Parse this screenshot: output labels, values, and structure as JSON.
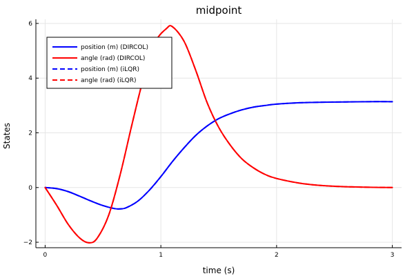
{
  "chart_data": {
    "type": "line",
    "title": "midpoint",
    "xlabel": "time (s)",
    "ylabel": "States",
    "xlim": [
      -0.08,
      3.08
    ],
    "ylim": [
      -2.2,
      6.15
    ],
    "xticks": [
      0,
      1,
      2,
      3
    ],
    "yticks": [
      -2,
      0,
      2,
      4,
      6
    ],
    "grid": true,
    "legend_position": "top-left",
    "series": [
      {
        "name": "position (m) (DIRCOL)",
        "color": "#0000ff",
        "dash": "solid",
        "x": [
          0,
          0.1,
          0.2,
          0.3,
          0.4,
          0.5,
          0.6,
          0.65,
          0.7,
          0.8,
          0.9,
          1.0,
          1.1,
          1.2,
          1.3,
          1.4,
          1.5,
          1.6,
          1.7,
          1.8,
          1.9,
          2.0,
          2.2,
          2.4,
          2.6,
          2.8,
          3.0
        ],
        "y": [
          0,
          -0.04,
          -0.15,
          -0.32,
          -0.5,
          -0.66,
          -0.77,
          -0.78,
          -0.74,
          -0.5,
          -0.1,
          0.4,
          0.95,
          1.45,
          1.9,
          2.25,
          2.52,
          2.7,
          2.84,
          2.94,
          3.0,
          3.05,
          3.1,
          3.12,
          3.13,
          3.14,
          3.14
        ]
      },
      {
        "name": "angle (rad) (DIRCOL)",
        "color": "#ff0000",
        "dash": "solid",
        "x": [
          0,
          0.1,
          0.2,
          0.3,
          0.38,
          0.45,
          0.55,
          0.65,
          0.75,
          0.85,
          0.95,
          1.05,
          1.1,
          1.2,
          1.3,
          1.4,
          1.5,
          1.6,
          1.7,
          1.8,
          1.9,
          2.0,
          2.2,
          2.4,
          2.6,
          2.8,
          3.0
        ],
        "y": [
          0,
          -0.65,
          -1.35,
          -1.85,
          -2.02,
          -1.85,
          -1.0,
          0.5,
          2.3,
          4.0,
          5.3,
          5.82,
          5.88,
          5.35,
          4.3,
          3.1,
          2.2,
          1.55,
          1.05,
          0.72,
          0.48,
          0.33,
          0.16,
          0.07,
          0.03,
          0.01,
          0.0
        ]
      },
      {
        "name": "position (m) (iLQR)",
        "color": "#0000ff",
        "dash": "dashed",
        "x": [
          0,
          0.1,
          0.2,
          0.3,
          0.4,
          0.5,
          0.6,
          0.65,
          0.7,
          0.8,
          0.9,
          1.0,
          1.1,
          1.2,
          1.3,
          1.4,
          1.5,
          1.6,
          1.7,
          1.8,
          1.9,
          2.0,
          2.2,
          2.4,
          2.6,
          2.8,
          3.0
        ],
        "y": [
          0,
          -0.04,
          -0.15,
          -0.32,
          -0.5,
          -0.66,
          -0.77,
          -0.78,
          -0.74,
          -0.5,
          -0.1,
          0.4,
          0.95,
          1.45,
          1.9,
          2.25,
          2.52,
          2.7,
          2.84,
          2.94,
          3.0,
          3.05,
          3.1,
          3.12,
          3.13,
          3.14,
          3.14
        ]
      },
      {
        "name": "angle (rad) (iLQR)",
        "color": "#ff0000",
        "dash": "dashed",
        "x": [
          0,
          0.1,
          0.2,
          0.3,
          0.38,
          0.45,
          0.55,
          0.65,
          0.75,
          0.85,
          0.95,
          1.05,
          1.1,
          1.2,
          1.3,
          1.4,
          1.5,
          1.6,
          1.7,
          1.8,
          1.9,
          2.0,
          2.2,
          2.4,
          2.6,
          2.8,
          3.0
        ],
        "y": [
          0,
          -0.65,
          -1.35,
          -1.85,
          -2.02,
          -1.85,
          -1.0,
          0.5,
          2.3,
          4.0,
          5.3,
          5.82,
          5.88,
          5.35,
          4.3,
          3.1,
          2.2,
          1.55,
          1.05,
          0.72,
          0.48,
          0.33,
          0.16,
          0.07,
          0.03,
          0.01,
          0.0
        ]
      }
    ]
  }
}
